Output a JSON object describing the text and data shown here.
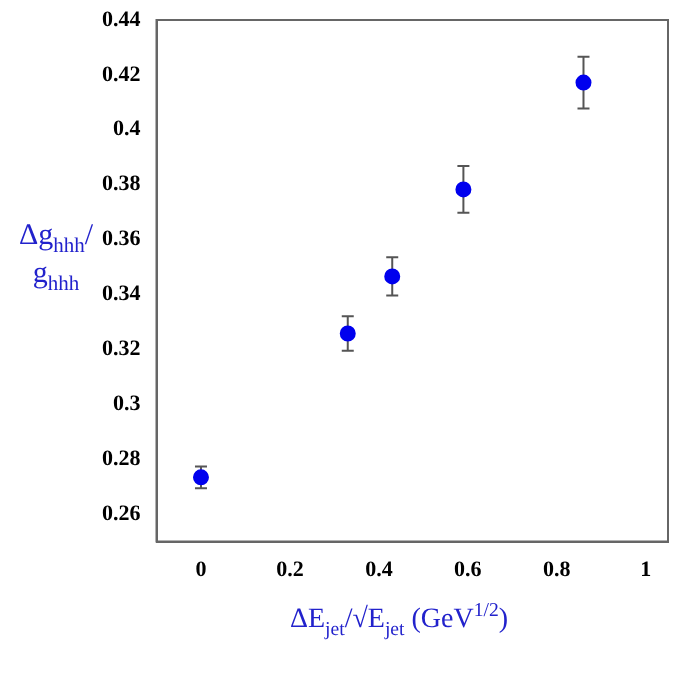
{
  "chart_data": {
    "type": "scatter",
    "xlabel": "ΔE$_{jet}$/√E$_{jet}$  (GeV$^{1/2}$)",
    "ylabel": "Δg$_{hhh}$/g$_{hhh}$",
    "x": [
      0,
      0.33,
      0.43,
      0.59,
      0.86
    ],
    "series": [
      {
        "color": "#0000ee",
        "values": [
          0.2734,
          0.3258,
          0.3466,
          0.3783,
          0.4172
        ],
        "errors": [
          0.004,
          0.0063,
          0.007,
          0.0085,
          0.0094
        ]
      }
    ],
    "xlim": [
      -0.1,
      1.05
    ],
    "ylim": [
      0.25,
      0.44
    ],
    "xticks": [
      0,
      0.2,
      0.4,
      0.6,
      0.8,
      1
    ],
    "yticks": [
      0.26,
      0.28,
      0.3,
      0.32,
      0.34,
      0.36,
      0.38,
      0.4,
      0.42,
      0.44
    ],
    "grid": false,
    "legend": false,
    "marker": "circle"
  }
}
